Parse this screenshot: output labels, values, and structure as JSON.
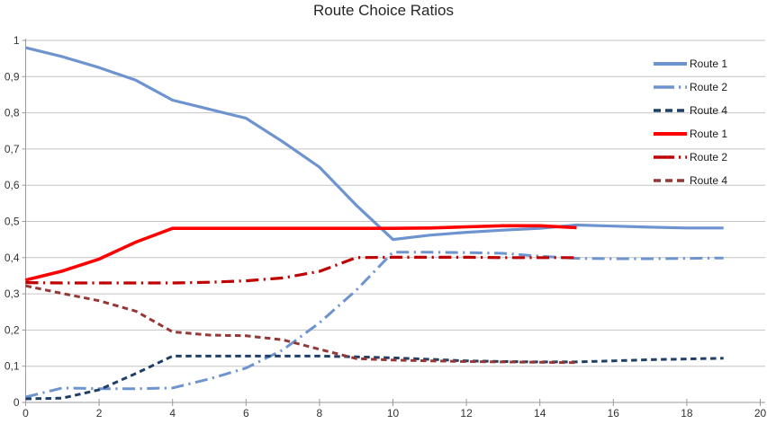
{
  "colors": {
    "background": "#FFFFFF",
    "grid": "#C4C4C4",
    "axis": "#9A9A9A",
    "tick_label": "#333333",
    "title": "#262626"
  },
  "chart_data": {
    "type": "line",
    "title": "Route Choice Ratios",
    "xlabel": "",
    "ylabel": "",
    "xlim": [
      0,
      20
    ],
    "ylim": [
      0,
      1
    ],
    "x_tick_labels": [
      "0",
      "2",
      "4",
      "6",
      "8",
      "10",
      "12",
      "14",
      "16",
      "18",
      "20"
    ],
    "x_tick_values": [
      0,
      2,
      4,
      6,
      8,
      10,
      12,
      14,
      16,
      18,
      20
    ],
    "y_tick_labels": [
      "0",
      "0,1",
      "0,2",
      "0,3",
      "0,4",
      "0,5",
      "0,6",
      "0,7",
      "0,8",
      "0,9",
      "1"
    ],
    "y_tick_values": [
      0,
      0.1,
      0.2,
      0.3,
      0.4,
      0.5,
      0.6,
      0.7,
      0.8,
      0.9,
      1
    ],
    "grid": "horizontal",
    "legend_position": "right-top",
    "series": [
      {
        "name": "Route 1",
        "key": "blue-route-1",
        "color": "#6D94CF",
        "style": "solid",
        "width": 3.2,
        "x": [
          0,
          1,
          2,
          3,
          4,
          5,
          6,
          7,
          8,
          9,
          10,
          11,
          12,
          13,
          14,
          15,
          16,
          17,
          18,
          19
        ],
        "values": [
          0.98,
          0.955,
          0.925,
          0.89,
          0.835,
          0.81,
          0.785,
          0.72,
          0.65,
          0.545,
          0.45,
          0.462,
          0.47,
          0.476,
          0.481,
          0.49,
          0.487,
          0.484,
          0.482,
          0.482
        ]
      },
      {
        "name": "Route 2",
        "key": "blue-route-2",
        "color": "#6D94CF",
        "style": "long-dash-dot",
        "width": 3,
        "x": [
          0,
          1,
          2,
          3,
          4,
          5,
          6,
          7,
          8,
          9,
          10,
          11,
          12,
          13,
          14,
          15,
          16,
          17,
          18,
          19
        ],
        "values": [
          0.015,
          0.04,
          0.038,
          0.038,
          0.04,
          0.065,
          0.095,
          0.145,
          0.22,
          0.31,
          0.415,
          0.415,
          0.414,
          0.412,
          0.404,
          0.398,
          0.397,
          0.397,
          0.398,
          0.399
        ]
      },
      {
        "name": "Route 4",
        "key": "blue-route-4",
        "color": "#1F3F66",
        "style": "short-dash",
        "width": 3,
        "x": [
          0,
          1,
          2,
          3,
          4,
          5,
          6,
          7,
          8,
          9,
          10,
          11,
          12,
          13,
          14,
          15,
          16,
          17,
          18,
          19
        ],
        "values": [
          0.01,
          0.012,
          0.035,
          0.08,
          0.128,
          0.128,
          0.128,
          0.128,
          0.128,
          0.126,
          0.123,
          0.119,
          0.115,
          0.113,
          0.112,
          0.112,
          0.115,
          0.118,
          0.12,
          0.122
        ]
      },
      {
        "name": "Route 1",
        "key": "red-route-1",
        "color": "#FE0000",
        "style": "solid",
        "width": 3.6,
        "x": [
          0,
          1,
          2,
          3,
          4,
          5,
          6,
          7,
          8,
          9,
          10,
          11,
          12,
          13,
          14,
          15
        ],
        "values": [
          0.338,
          0.363,
          0.396,
          0.443,
          0.481,
          0.481,
          0.481,
          0.481,
          0.481,
          0.481,
          0.481,
          0.482,
          0.485,
          0.488,
          0.488,
          0.483
        ]
      },
      {
        "name": "Route 2",
        "key": "red-route-2",
        "color": "#C00000",
        "style": "long-dash-dot",
        "width": 3.2,
        "x": [
          0,
          1,
          2,
          3,
          4,
          5,
          6,
          7,
          8,
          9,
          10,
          11,
          12,
          13,
          14,
          15
        ],
        "values": [
          0.331,
          0.33,
          0.33,
          0.33,
          0.33,
          0.332,
          0.336,
          0.344,
          0.362,
          0.4,
          0.401,
          0.401,
          0.401,
          0.4,
          0.4,
          0.4
        ]
      },
      {
        "name": "Route 4",
        "key": "red-route-4",
        "color": "#943735",
        "style": "short-dash",
        "width": 3,
        "x": [
          0,
          1,
          2,
          3,
          4,
          5,
          6,
          7,
          8,
          9,
          10,
          11,
          12,
          13,
          14,
          15
        ],
        "values": [
          0.322,
          0.301,
          0.281,
          0.252,
          0.195,
          0.186,
          0.184,
          0.173,
          0.147,
          0.121,
          0.117,
          0.115,
          0.113,
          0.112,
          0.111,
          0.11
        ]
      }
    ]
  }
}
